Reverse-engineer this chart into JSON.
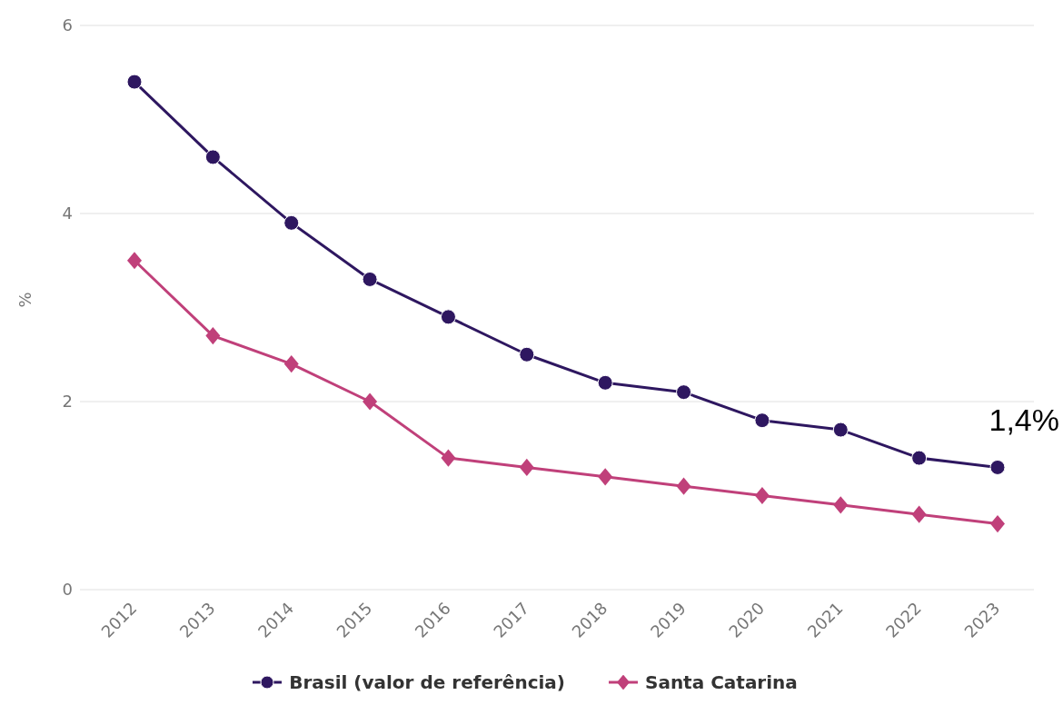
{
  "chart_data": {
    "type": "line",
    "ylabel": "%",
    "categories": [
      "2012",
      "2013",
      "2014",
      "2015",
      "2016",
      "2017",
      "2018",
      "2019",
      "2020",
      "2021",
      "2022",
      "2023"
    ],
    "series": [
      {
        "name": "Brasil (valor de referência)",
        "color": "#2e1760",
        "marker": "circle",
        "values": [
          5.4,
          4.6,
          3.9,
          3.3,
          2.9,
          2.5,
          2.2,
          2.1,
          1.8,
          1.7,
          1.4,
          1.3
        ]
      },
      {
        "name": "Santa Catarina",
        "color": "#c0407a",
        "marker": "diamond",
        "values": [
          3.5,
          2.7,
          2.4,
          2.0,
          1.4,
          1.3,
          1.2,
          1.1,
          1.0,
          0.9,
          0.8,
          0.7
        ]
      }
    ],
    "ylim": [
      0,
      6
    ],
    "yticks": [
      0,
      2,
      4,
      6
    ],
    "grid": "y",
    "legend": "bottom",
    "annotations": [
      "1,4%"
    ]
  }
}
